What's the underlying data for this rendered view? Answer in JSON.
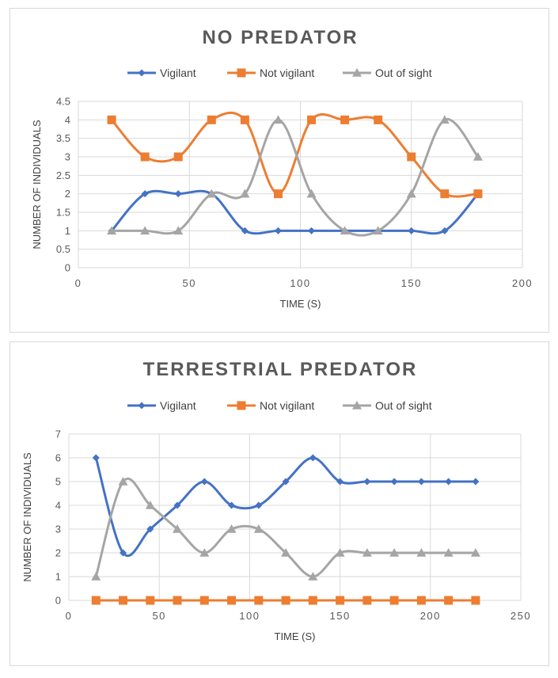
{
  "chart_data": [
    {
      "type": "line",
      "title": "NO PREDATOR",
      "xlabel": "TIME (S)",
      "ylabel": "NUMBER OF INDIVIDUALS",
      "xlim": [
        0,
        200
      ],
      "ylim": [
        0,
        4.5
      ],
      "xticks": [
        "0",
        "50",
        "100",
        "150",
        "200"
      ],
      "yticks": [
        "0",
        "0.5",
        "1",
        "1.5",
        "2",
        "2.5",
        "3",
        "3.5",
        "4",
        "4.5"
      ],
      "grid": true,
      "legend_position": "top",
      "x": [
        15,
        30,
        45,
        60,
        75,
        90,
        105,
        120,
        135,
        150,
        165,
        180
      ],
      "series": [
        {
          "name": "Vigilant",
          "color": "#4472c4",
          "marker": "diamond",
          "values": [
            1,
            2,
            2,
            2,
            1,
            1,
            1,
            1,
            1,
            1,
            1,
            2
          ]
        },
        {
          "name": "Not vigilant",
          "color": "#ed7d31",
          "marker": "square",
          "values": [
            4,
            3,
            3,
            4,
            4,
            2,
            4,
            4,
            4,
            3,
            2,
            2
          ]
        },
        {
          "name": "Out of sight",
          "color": "#a5a5a5",
          "marker": "triangle",
          "values": [
            1,
            1,
            1,
            2,
            2,
            4,
            2,
            1,
            1,
            2,
            4,
            3
          ]
        }
      ]
    },
    {
      "type": "line",
      "title": "TERRESTRIAL  PREDATOR",
      "xlabel": "TIME (S)",
      "ylabel": "NUMBER OF INDIVIDUALS",
      "xlim": [
        0,
        250
      ],
      "ylim": [
        0,
        7
      ],
      "xticks": [
        "0",
        "50",
        "100",
        "150",
        "200",
        "250"
      ],
      "yticks": [
        "0",
        "1",
        "2",
        "3",
        "4",
        "5",
        "6",
        "7"
      ],
      "grid": true,
      "legend_position": "top",
      "x": [
        15,
        30,
        45,
        60,
        75,
        90,
        105,
        120,
        135,
        150,
        165,
        180,
        195,
        210,
        225
      ],
      "series": [
        {
          "name": "Vigilant",
          "color": "#4472c4",
          "marker": "diamond",
          "values": [
            6,
            2,
            3,
            4,
            5,
            4,
            4,
            5,
            6,
            5,
            5,
            5,
            5,
            5,
            5
          ]
        },
        {
          "name": "Not vigilant",
          "color": "#ed7d31",
          "marker": "square",
          "values": [
            0,
            0,
            0,
            0,
            0,
            0,
            0,
            0,
            0,
            0,
            0,
            0,
            0,
            0,
            0
          ]
        },
        {
          "name": "Out of sight",
          "color": "#a5a5a5",
          "marker": "triangle",
          "values": [
            1,
            5,
            4,
            3,
            2,
            3,
            3,
            2,
            1,
            2,
            2,
            2,
            2,
            2,
            2
          ]
        }
      ]
    }
  ]
}
